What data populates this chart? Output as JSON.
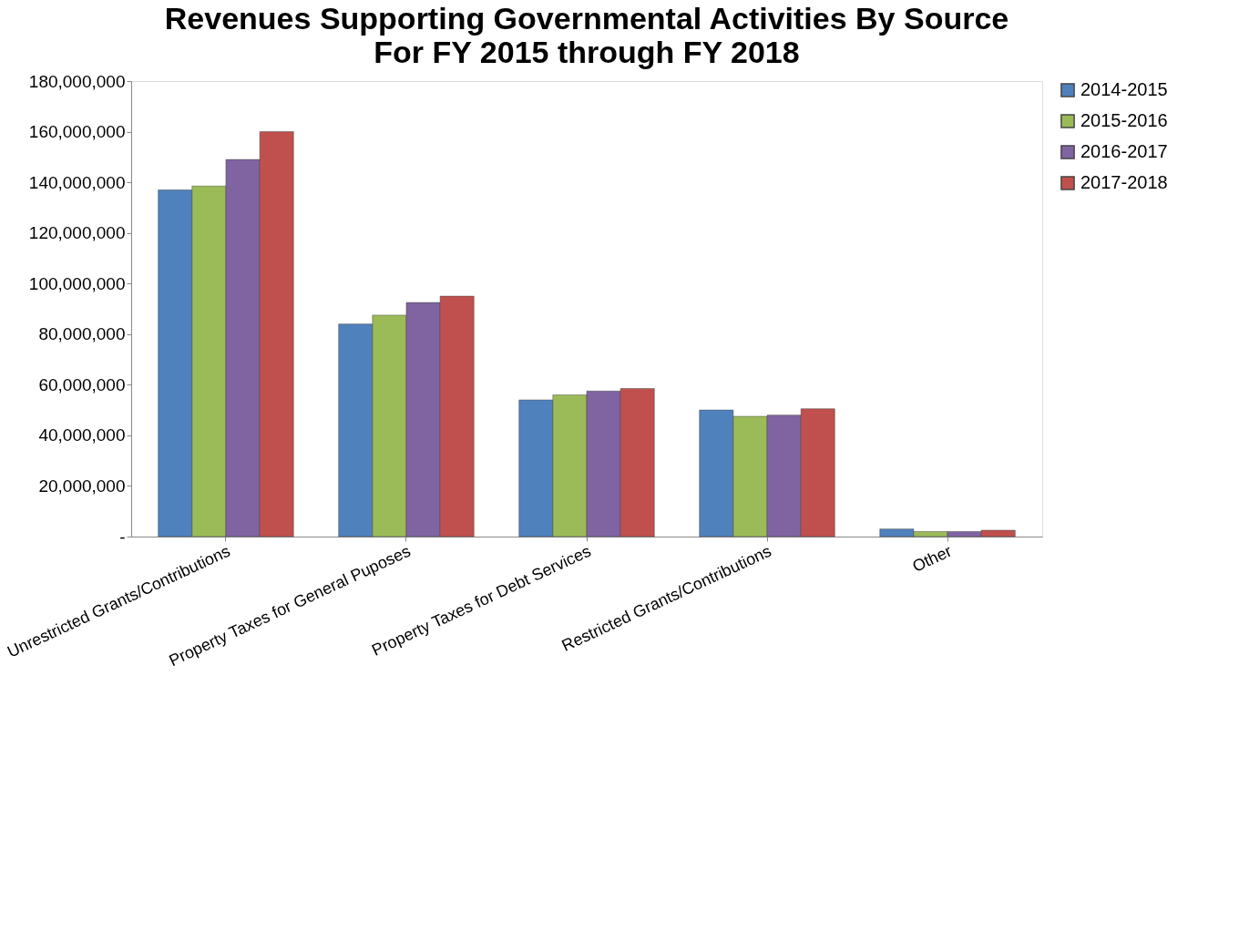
{
  "chart_data": {
    "type": "bar",
    "title": "Revenues Supporting Governmental Activities By Source",
    "subtitle": "For FY 2015 through FY 2018",
    "categories": [
      "Unrestricted Grants/Contributions",
      "Property Taxes for General Puposes",
      "Property Taxes for Debt Services",
      "Restricted Grants/Contributions",
      "Other"
    ],
    "series": [
      {
        "name": "2014-2015",
        "color": "#4f81bd",
        "values": [
          137000000,
          84000000,
          54000000,
          50000000,
          3000000
        ]
      },
      {
        "name": "2015-2016",
        "color": "#9bbb59",
        "values": [
          138500000,
          87500000,
          56000000,
          47500000,
          2000000
        ]
      },
      {
        "name": "2016-2017",
        "color": "#8064a2",
        "values": [
          149000000,
          92500000,
          57500000,
          48000000,
          2000000
        ]
      },
      {
        "name": "2017-2018",
        "color": "#c0504d",
        "values": [
          160000000,
          95000000,
          58500000,
          50500000,
          2500000
        ]
      }
    ],
    "ylim": [
      0,
      180000000
    ],
    "yticks": [
      {
        "value": 0,
        "label": "-"
      },
      {
        "value": 20000000,
        "label": "20,000,000"
      },
      {
        "value": 40000000,
        "label": "40,000,000"
      },
      {
        "value": 60000000,
        "label": "60,000,000"
      },
      {
        "value": 80000000,
        "label": "80,000,000"
      },
      {
        "value": 100000000,
        "label": "100,000,000"
      },
      {
        "value": 120000000,
        "label": "120,000,000"
      },
      {
        "value": 140000000,
        "label": "140,000,000"
      },
      {
        "value": 160000000,
        "label": "160,000,000"
      },
      {
        "value": 180000000,
        "label": "180,000,000"
      }
    ],
    "grid": false,
    "legend": "top right"
  }
}
